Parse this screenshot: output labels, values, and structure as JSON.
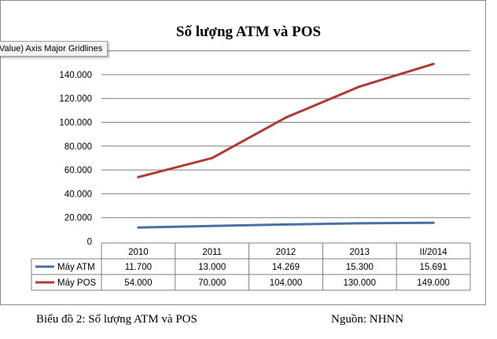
{
  "tooltip": "Value) Axis Major Gridlines",
  "caption": "Biểu đồ 2: Số lượng ATM và POS",
  "source": "Nguồn: NHNN",
  "chart_data": {
    "type": "line",
    "title": "Số lượng ATM và POS",
    "categories": [
      "2010",
      "2011",
      "2012",
      "2013",
      "II/2014"
    ],
    "ylim": [
      0,
      160000
    ],
    "y_ticks": [
      "0",
      "20.000",
      "40.000",
      "60.000",
      "80.000",
      "100.000",
      "120.000",
      "140.000"
    ],
    "y_tick_values": [
      0,
      20000,
      40000,
      60000,
      80000,
      100000,
      120000,
      140000
    ],
    "grid": true,
    "legend": "data-table",
    "series": [
      {
        "name": "Máy ATM",
        "color": "#4a6fa5",
        "values": [
          11700,
          13000,
          14269,
          15300,
          15691
        ],
        "labels": [
          "11.700",
          "13.000",
          "14.269",
          "15.300",
          "15.691"
        ]
      },
      {
        "name": "Máy POS",
        "color": "#b03a33",
        "values": [
          54000,
          70000,
          104000,
          130000,
          149000
        ],
        "labels": [
          "54.000",
          "70.000",
          "104.000",
          "130.000",
          "149.000"
        ]
      }
    ]
  }
}
